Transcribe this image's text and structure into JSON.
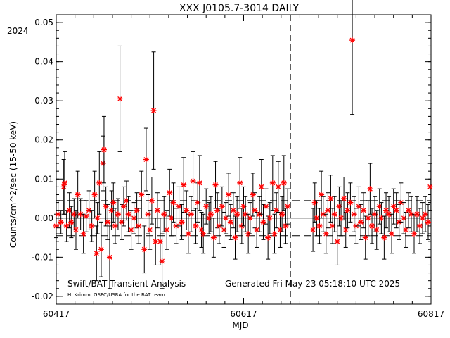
{
  "chart_data": {
    "type": "scatter",
    "title": "XXX J0105.7-3014 DAILY",
    "year_label": "2024",
    "xlabel": "MJD",
    "ylabel": "Counts/cm^2/sec (15-50 keV)",
    "xlim": [
      60417,
      60817
    ],
    "ylim": [
      -0.022,
      0.052
    ],
    "xticks": [
      60417,
      60617,
      60817
    ],
    "xtick_labels": [
      "60417",
      "60617",
      "60817"
    ],
    "yticks": [
      -0.02,
      -0.01,
      0.0,
      0.01,
      0.02,
      0.03,
      0.04,
      0.05
    ],
    "ytick_labels": [
      "-0.02",
      "-0.01",
      "0.00",
      "0.01",
      "0.02",
      "0.03",
      "0.04",
      "0.05"
    ],
    "marker_color": "#ff0000",
    "errorbar_color": "#000000",
    "reference_lines": [
      0.0,
      0.0045,
      -0.0045
    ],
    "vline_mjd": 60667,
    "gap": [
      60665,
      60690
    ],
    "annotation_left": "Swift/BAT Transient Analysis",
    "annotation_credit": "H. Krimm, GSFC/USRA for the BAT team",
    "annotation_right": "Generated Fri May 23 05:18:10 UTC 2025",
    "series": [
      {
        "points": [
          {
            "x": 60417,
            "y": -0.002,
            "err": 0.003
          },
          {
            "x": 60419,
            "y": 0.001,
            "err": 0.0035
          },
          {
            "x": 60422,
            "y": -0.001,
            "err": 0.003
          },
          {
            "x": 60425,
            "y": 0.008,
            "err": 0.007
          },
          {
            "x": 60426,
            "y": 0.009,
            "err": 0.008
          },
          {
            "x": 60428,
            "y": -0.002,
            "err": 0.004
          },
          {
            "x": 60431,
            "y": 0.002,
            "err": 0.0045
          },
          {
            "x": 60433,
            "y": -0.001,
            "err": 0.004
          },
          {
            "x": 60436,
            "y": 0.001,
            "err": 0.004
          },
          {
            "x": 60438,
            "y": -0.003,
            "err": 0.005
          },
          {
            "x": 60440,
            "y": 0.006,
            "err": 0.006
          },
          {
            "x": 60443,
            "y": 0.001,
            "err": 0.004
          },
          {
            "x": 60446,
            "y": -0.004,
            "err": 0.005
          },
          {
            "x": 60449,
            "y": 0.0005,
            "err": 0.004
          },
          {
            "x": 60452,
            "y": 0.002,
            "err": 0.005
          },
          {
            "x": 60455,
            "y": -0.002,
            "err": 0.004
          },
          {
            "x": 60458,
            "y": 0.006,
            "err": 0.006
          },
          {
            "x": 60460,
            "y": -0.009,
            "err": 0.007
          },
          {
            "x": 60461,
            "y": 0.0,
            "err": 0.004
          },
          {
            "x": 60463,
            "y": 0.009,
            "err": 0.008
          },
          {
            "x": 60465,
            "y": -0.008,
            "err": 0.007
          },
          {
            "x": 60467,
            "y": 0.014,
            "err": 0.007
          },
          {
            "x": 60468,
            "y": 0.0175,
            "err": 0.0085
          },
          {
            "x": 60470,
            "y": 0.003,
            "err": 0.005
          },
          {
            "x": 60472,
            "y": -0.001,
            "err": 0.0045
          },
          {
            "x": 60474,
            "y": -0.01,
            "err": 0.008
          },
          {
            "x": 60476,
            "y": 0.002,
            "err": 0.005
          },
          {
            "x": 60478,
            "y": 0.004,
            "err": 0.005
          },
          {
            "x": 60480,
            "y": -0.002,
            "err": 0.0045
          },
          {
            "x": 60483,
            "y": 0.001,
            "err": 0.004
          },
          {
            "x": 60485,
            "y": 0.0305,
            "err": 0.0135
          },
          {
            "x": 60487,
            "y": -0.001,
            "err": 0.0045
          },
          {
            "x": 60489,
            "y": 0.003,
            "err": 0.005
          },
          {
            "x": 60492,
            "y": 0.0045,
            "err": 0.005
          },
          {
            "x": 60494,
            "y": 0.001,
            "err": 0.0045
          },
          {
            "x": 60497,
            "y": -0.003,
            "err": 0.005
          },
          {
            "x": 60500,
            "y": 0.0,
            "err": 0.004
          },
          {
            "x": 60503,
            "y": 0.002,
            "err": 0.0045
          },
          {
            "x": 60505,
            "y": -0.002,
            "err": 0.0045
          },
          {
            "x": 60508,
            "y": 0.006,
            "err": 0.006
          },
          {
            "x": 60511,
            "y": -0.008,
            "err": 0.006
          },
          {
            "x": 60513,
            "y": 0.015,
            "err": 0.008
          },
          {
            "x": 60515,
            "y": 0.001,
            "err": 0.005
          },
          {
            "x": 60517,
            "y": -0.003,
            "err": 0.005
          },
          {
            "x": 60519,
            "y": 0.0045,
            "err": 0.006
          },
          {
            "x": 60521,
            "y": 0.0275,
            "err": 0.015
          },
          {
            "x": 60523,
            "y": -0.006,
            "err": 0.006
          },
          {
            "x": 60525,
            "y": 0.002,
            "err": 0.0045
          },
          {
            "x": 60528,
            "y": -0.006,
            "err": 0.006
          },
          {
            "x": 60530,
            "y": -0.011,
            "err": 0.007
          },
          {
            "x": 60532,
            "y": 0.001,
            "err": 0.0045
          },
          {
            "x": 60535,
            "y": -0.003,
            "err": 0.005
          },
          {
            "x": 60538,
            "y": 0.0065,
            "err": 0.006
          },
          {
            "x": 60540,
            "y": 0.0,
            "err": 0.0045
          },
          {
            "x": 60542,
            "y": 0.004,
            "err": 0.005
          },
          {
            "x": 60545,
            "y": -0.002,
            "err": 0.0045
          },
          {
            "x": 60548,
            "y": 0.003,
            "err": 0.005
          },
          {
            "x": 60551,
            "y": -0.001,
            "err": 0.0045
          },
          {
            "x": 60553,
            "y": 0.0085,
            "err": 0.007
          },
          {
            "x": 60556,
            "y": 0.002,
            "err": 0.005
          },
          {
            "x": 60558,
            "y": -0.004,
            "err": 0.005
          },
          {
            "x": 60561,
            "y": 0.001,
            "err": 0.0045
          },
          {
            "x": 60563,
            "y": 0.0095,
            "err": 0.0075
          },
          {
            "x": 60566,
            "y": -0.002,
            "err": 0.0045
          },
          {
            "x": 60568,
            "y": 0.004,
            "err": 0.005
          },
          {
            "x": 60570,
            "y": 0.009,
            "err": 0.007
          },
          {
            "x": 60572,
            "y": -0.003,
            "err": 0.0045
          },
          {
            "x": 60574,
            "y": -0.004,
            "err": 0.005
          },
          {
            "x": 60577,
            "y": 0.003,
            "err": 0.0045
          },
          {
            "x": 60580,
            "y": 0.0,
            "err": 0.004
          },
          {
            "x": 60582,
            "y": 0.001,
            "err": 0.0045
          },
          {
            "x": 60585,
            "y": -0.005,
            "err": 0.005
          },
          {
            "x": 60587,
            "y": 0.0085,
            "err": 0.006
          },
          {
            "x": 60589,
            "y": 0.002,
            "err": 0.0045
          },
          {
            "x": 60591,
            "y": -0.002,
            "err": 0.0045
          },
          {
            "x": 60594,
            "y": 0.003,
            "err": 0.005
          },
          {
            "x": 60596,
            "y": -0.003,
            "err": 0.0045
          },
          {
            "x": 60598,
            "y": 0.0,
            "err": 0.004
          },
          {
            "x": 60601,
            "y": 0.006,
            "err": 0.0055
          },
          {
            "x": 60603,
            "y": -0.001,
            "err": 0.0045
          },
          {
            "x": 60606,
            "y": 0.002,
            "err": 0.0045
          },
          {
            "x": 60608,
            "y": -0.005,
            "err": 0.0055
          },
          {
            "x": 60610,
            "y": 0.001,
            "err": 0.0045
          },
          {
            "x": 60613,
            "y": 0.009,
            "err": 0.0065
          },
          {
            "x": 60615,
            "y": -0.002,
            "err": 0.0045
          },
          {
            "x": 60617,
            "y": 0.003,
            "err": 0.005
          },
          {
            "x": 60619,
            "y": 0.001,
            "err": 0.0045
          },
          {
            "x": 60622,
            "y": -0.004,
            "err": 0.005
          },
          {
            "x": 60624,
            "y": 0.0,
            "err": 0.004
          },
          {
            "x": 60627,
            "y": 0.006,
            "err": 0.0055
          },
          {
            "x": 60629,
            "y": 0.002,
            "err": 0.0045
          },
          {
            "x": 60631,
            "y": -0.003,
            "err": 0.0045
          },
          {
            "x": 60634,
            "y": 0.001,
            "err": 0.0045
          },
          {
            "x": 60636,
            "y": 0.008,
            "err": 0.007
          },
          {
            "x": 60638,
            "y": -0.001,
            "err": 0.0045
          },
          {
            "x": 60641,
            "y": 0.003,
            "err": 0.0045
          },
          {
            "x": 60643,
            "y": -0.005,
            "err": 0.0055
          },
          {
            "x": 60645,
            "y": 0.0,
            "err": 0.004
          },
          {
            "x": 60648,
            "y": 0.009,
            "err": 0.007
          },
          {
            "x": 60650,
            "y": -0.004,
            "err": 0.005
          },
          {
            "x": 60652,
            "y": 0.002,
            "err": 0.0045
          },
          {
            "x": 60654,
            "y": 0.008,
            "err": 0.0065
          },
          {
            "x": 60656,
            "y": -0.003,
            "err": 0.0045
          },
          {
            "x": 60658,
            "y": 0.001,
            "err": 0.0045
          },
          {
            "x": 60660,
            "y": 0.009,
            "err": 0.007
          },
          {
            "x": 60662,
            "y": -0.002,
            "err": 0.0045
          },
          {
            "x": 60664,
            "y": 0.003,
            "err": 0.0045
          },
          {
            "x": 60691,
            "y": -0.003,
            "err": 0.0055
          },
          {
            "x": 60693,
            "y": 0.004,
            "err": 0.005
          },
          {
            "x": 60695,
            "y": 0.0,
            "err": 0.0045
          },
          {
            "x": 60698,
            "y": -0.002,
            "err": 0.0045
          },
          {
            "x": 60700,
            "y": 0.006,
            "err": 0.006
          },
          {
            "x": 60702,
            "y": 0.001,
            "err": 0.0045
          },
          {
            "x": 60705,
            "y": -0.004,
            "err": 0.005
          },
          {
            "x": 60707,
            "y": 0.002,
            "err": 0.0045
          },
          {
            "x": 60710,
            "y": 0.005,
            "err": 0.006
          },
          {
            "x": 60712,
            "y": -0.002,
            "err": 0.0045
          },
          {
            "x": 60714,
            "y": 0.001,
            "err": 0.0045
          },
          {
            "x": 60717,
            "y": -0.006,
            "err": 0.006
          },
          {
            "x": 60719,
            "y": 0.003,
            "err": 0.005
          },
          {
            "x": 60721,
            "y": 0.0,
            "err": 0.0045
          },
          {
            "x": 60724,
            "y": 0.005,
            "err": 0.0055
          },
          {
            "x": 60726,
            "y": -0.003,
            "err": 0.0045
          },
          {
            "x": 60728,
            "y": 0.002,
            "err": 0.0045
          },
          {
            "x": 60731,
            "y": 0.004,
            "err": 0.005
          },
          {
            "x": 60733,
            "y": 0.0455,
            "err": 0.019
          },
          {
            "x": 60735,
            "y": 0.001,
            "err": 0.0045
          },
          {
            "x": 60737,
            "y": -0.002,
            "err": 0.0045
          },
          {
            "x": 60740,
            "y": 0.003,
            "err": 0.005
          },
          {
            "x": 60742,
            "y": -0.001,
            "err": 0.0045
          },
          {
            "x": 60745,
            "y": 0.002,
            "err": 0.0045
          },
          {
            "x": 60747,
            "y": -0.005,
            "err": 0.0055
          },
          {
            "x": 60750,
            "y": 0.0,
            "err": 0.0045
          },
          {
            "x": 60752,
            "y": 0.0075,
            "err": 0.0065
          },
          {
            "x": 60754,
            "y": -0.002,
            "err": 0.0045
          },
          {
            "x": 60757,
            "y": 0.001,
            "err": 0.0045
          },
          {
            "x": 60759,
            "y": -0.003,
            "err": 0.005
          },
          {
            "x": 60762,
            "y": 0.003,
            "err": 0.0045
          },
          {
            "x": 60764,
            "y": 0.0,
            "err": 0.004
          },
          {
            "x": 60767,
            "y": -0.005,
            "err": 0.0055
          },
          {
            "x": 60769,
            "y": 0.002,
            "err": 0.0045
          },
          {
            "x": 60772,
            "y": 0.001,
            "err": 0.0045
          },
          {
            "x": 60775,
            "y": -0.004,
            "err": 0.005
          },
          {
            "x": 60777,
            "y": 0.003,
            "err": 0.0045
          },
          {
            "x": 60780,
            "y": 0.002,
            "err": 0.0045
          },
          {
            "x": 60783,
            "y": -0.001,
            "err": 0.0045
          },
          {
            "x": 60785,
            "y": 0.004,
            "err": 0.005
          },
          {
            "x": 60788,
            "y": 0.0,
            "err": 0.004
          },
          {
            "x": 60790,
            "y": -0.003,
            "err": 0.0045
          },
          {
            "x": 60793,
            "y": 0.002,
            "err": 0.0045
          },
          {
            "x": 60796,
            "y": 0.001,
            "err": 0.0045
          },
          {
            "x": 60799,
            "y": -0.004,
            "err": 0.005
          },
          {
            "x": 60802,
            "y": 0.001,
            "err": 0.0045
          },
          {
            "x": 60805,
            "y": -0.002,
            "err": 0.0045
          },
          {
            "x": 60808,
            "y": 0.0,
            "err": 0.004
          },
          {
            "x": 60811,
            "y": 0.001,
            "err": 0.0045
          },
          {
            "x": 60814,
            "y": -0.001,
            "err": 0.0045
          },
          {
            "x": 60816,
            "y": 0.008,
            "err": 0.006
          }
        ]
      }
    ]
  }
}
